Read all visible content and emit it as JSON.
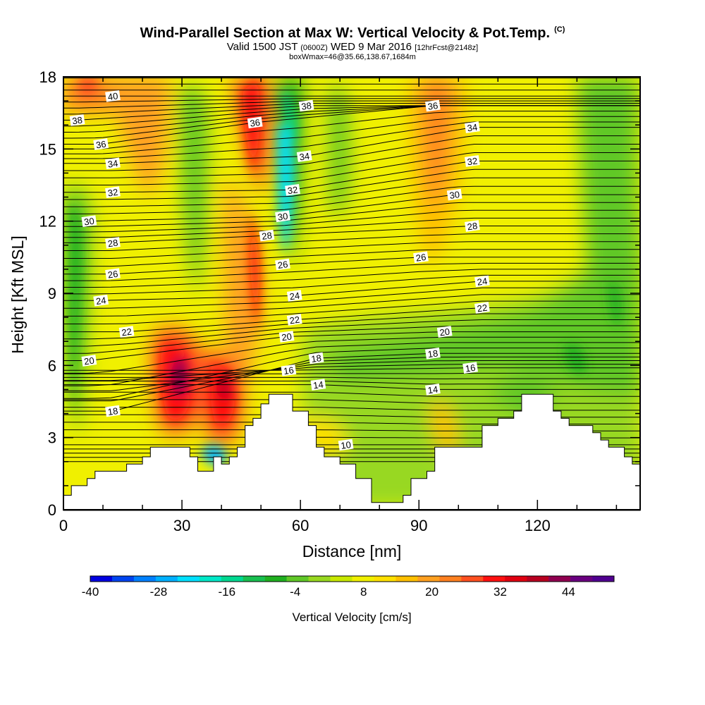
{
  "header": {
    "title": "Wind-Parallel Section at Max W: Vertical Velocity & Pot.Temp.",
    "title_suffix": "(C)",
    "subtitle_valid": "Valid 1500 JST",
    "subtitle_z": "(0600Z)",
    "subtitle_date": "WED 9 Mar 2016",
    "subtitle_fcst": "[12hrFcst@2148z]",
    "subtitle2": "boxWmax=46@35.66,138.67,1684m"
  },
  "chart_data": {
    "type": "heatmap",
    "xlabel": "Distance [nm]",
    "ylabel": "Height [Kft MSL]",
    "xlim": [
      0,
      146
    ],
    "ylim": [
      0,
      18
    ],
    "x_ticks": [
      "0",
      "30",
      "60",
      "90",
      "120"
    ],
    "y_ticks": [
      "0",
      "3",
      "6",
      "9",
      "12",
      "15",
      "18"
    ],
    "colorbar": {
      "label": "Vertical Velocity [cm/s]",
      "ticks": [
        "-40",
        "-28",
        "-16",
        "-4",
        "8",
        "20",
        "32",
        "44"
      ],
      "range": [
        -40,
        52
      ],
      "colors": [
        "#0000e0",
        "#0044f0",
        "#0080ff",
        "#00b0ff",
        "#00e0ff",
        "#00e8c8",
        "#00d890",
        "#18c050",
        "#20b020",
        "#60c828",
        "#98d820",
        "#c8e800",
        "#f0f000",
        "#ffe000",
        "#ffc000",
        "#ffa020",
        "#ff8020",
        "#ff5020",
        "#ff1010",
        "#e00010",
        "#b80020",
        "#900050",
        "#6a0080",
        "#500090"
      ]
    },
    "terrain": [
      [
        0,
        0.6
      ],
      [
        2,
        0.6
      ],
      [
        2,
        1
      ],
      [
        6,
        1
      ],
      [
        6,
        1.3
      ],
      [
        8,
        1.3
      ],
      [
        8,
        1.6
      ],
      [
        16,
        1.6
      ],
      [
        16,
        1.9
      ],
      [
        20,
        1.9
      ],
      [
        20,
        2.2
      ],
      [
        22,
        2.2
      ],
      [
        22,
        2.6
      ],
      [
        32,
        2.6
      ],
      [
        32,
        2.2
      ],
      [
        34,
        2.2
      ],
      [
        34,
        1.6
      ],
      [
        38,
        1.6
      ],
      [
        38,
        2.2
      ],
      [
        40,
        2.2
      ],
      [
        40,
        1.9
      ],
      [
        42,
        1.9
      ],
      [
        42,
        2.2
      ],
      [
        44,
        2.2
      ],
      [
        44,
        2.6
      ],
      [
        46,
        2.6
      ],
      [
        46,
        3.5
      ],
      [
        48,
        3.5
      ],
      [
        48,
        3.8
      ],
      [
        50,
        3.8
      ],
      [
        50,
        4.4
      ],
      [
        52,
        4.4
      ],
      [
        52,
        4.8
      ],
      [
        58,
        4.8
      ],
      [
        58,
        4.1
      ],
      [
        62,
        4.1
      ],
      [
        62,
        3.5
      ],
      [
        64,
        3.5
      ],
      [
        64,
        2.6
      ],
      [
        66,
        2.6
      ],
      [
        66,
        2.2
      ],
      [
        70,
        2.2
      ],
      [
        70,
        1.9
      ],
      [
        74,
        1.9
      ],
      [
        74,
        1.3
      ],
      [
        78,
        1.3
      ],
      [
        78,
        0.3
      ],
      [
        86,
        0.3
      ],
      [
        86,
        0.6
      ],
      [
        88,
        0.6
      ],
      [
        88,
        1.3
      ],
      [
        92,
        1.3
      ],
      [
        92,
        1.6
      ],
      [
        94,
        1.6
      ],
      [
        94,
        2.6
      ],
      [
        106,
        2.6
      ],
      [
        106,
        3.5
      ],
      [
        110,
        3.5
      ],
      [
        110,
        3.8
      ],
      [
        114,
        3.8
      ],
      [
        114,
        4.1
      ],
      [
        116,
        4.1
      ],
      [
        116,
        4.8
      ],
      [
        124,
        4.8
      ],
      [
        124,
        4.1
      ],
      [
        126,
        4.1
      ],
      [
        126,
        3.8
      ],
      [
        128,
        3.8
      ],
      [
        128,
        3.5
      ],
      [
        134,
        3.5
      ],
      [
        134,
        3.2
      ],
      [
        136,
        3.2
      ],
      [
        136,
        2.9
      ],
      [
        138,
        2.9
      ],
      [
        138,
        2.6
      ],
      [
        142,
        2.6
      ],
      [
        142,
        2.2
      ],
      [
        144,
        2.2
      ],
      [
        144,
        1.9
      ],
      [
        146,
        1.9
      ]
    ],
    "contours": [
      {
        "theta": "40",
        "x": 12.5,
        "y": 17.2
      },
      {
        "theta": "38",
        "x": 3.5,
        "y": 16.2
      },
      {
        "theta": "38",
        "x": 61.5,
        "y": 16.8
      },
      {
        "theta": "36",
        "x": 9.5,
        "y": 15.2
      },
      {
        "theta": "36",
        "x": 48.5,
        "y": 16.1
      },
      {
        "theta": "36",
        "x": 93.5,
        "y": 16.8
      },
      {
        "theta": "34",
        "x": 12.5,
        "y": 14.4
      },
      {
        "theta": "34",
        "x": 61,
        "y": 14.7
      },
      {
        "theta": "34",
        "x": 103.5,
        "y": 15.9
      },
      {
        "theta": "32",
        "x": 12.5,
        "y": 13.2
      },
      {
        "theta": "32",
        "x": 58,
        "y": 13.3
      },
      {
        "theta": "32",
        "x": 103.5,
        "y": 14.5
      },
      {
        "theta": "30",
        "x": 6.5,
        "y": 12
      },
      {
        "theta": "30",
        "x": 55.5,
        "y": 12.2
      },
      {
        "theta": "30",
        "x": 99,
        "y": 13.1
      },
      {
        "theta": "28",
        "x": 12.5,
        "y": 11.1
      },
      {
        "theta": "28",
        "x": 51.5,
        "y": 11.4
      },
      {
        "theta": "28",
        "x": 103.5,
        "y": 11.8
      },
      {
        "theta": "26",
        "x": 12.5,
        "y": 9.8
      },
      {
        "theta": "26",
        "x": 55.5,
        "y": 10.2
      },
      {
        "theta": "26",
        "x": 90.5,
        "y": 10.5
      },
      {
        "theta": "24",
        "x": 9.5,
        "y": 8.7
      },
      {
        "theta": "24",
        "x": 58.5,
        "y": 8.9
      },
      {
        "theta": "24",
        "x": 106,
        "y": 9.5
      },
      {
        "theta": "22",
        "x": 16,
        "y": 7.4
      },
      {
        "theta": "22",
        "x": 58.5,
        "y": 7.9
      },
      {
        "theta": "22",
        "x": 106,
        "y": 8.4
      },
      {
        "theta": "20",
        "x": 6.5,
        "y": 6.2
      },
      {
        "theta": "20",
        "x": 56.5,
        "y": 7.2
      },
      {
        "theta": "20",
        "x": 96.5,
        "y": 7.4
      },
      {
        "theta": "18",
        "x": 12.5,
        "y": 4.1
      },
      {
        "theta": "18",
        "x": 64,
        "y": 6.3
      },
      {
        "theta": "18",
        "x": 93.5,
        "y": 6.5
      },
      {
        "theta": "16",
        "x": 57,
        "y": 5.8
      },
      {
        "theta": "16",
        "x": 103,
        "y": 5.9
      },
      {
        "theta": "14",
        "x": 64.5,
        "y": 5.2
      },
      {
        "theta": "14",
        "x": 93.5,
        "y": 5
      },
      {
        "theta": "10",
        "x": 71.5,
        "y": 2.7
      }
    ]
  }
}
